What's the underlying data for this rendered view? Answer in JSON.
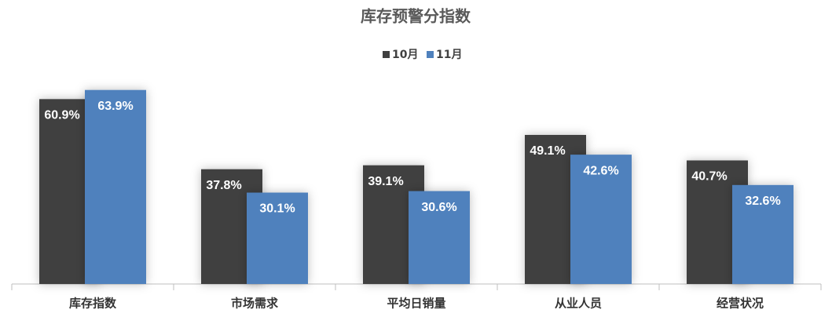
{
  "chart_data": {
    "type": "bar",
    "title": "库存预警分指数",
    "categories": [
      "库存指数",
      "市场需求",
      "平均日销量",
      "从业人员",
      "经营状况"
    ],
    "series": [
      {
        "name": "10月",
        "color": "#404040",
        "values": [
          60.9,
          37.8,
          39.1,
          49.1,
          40.7
        ],
        "value_labels": [
          "60.9%",
          "37.8%",
          "39.1%",
          "49.1%",
          "40.7%"
        ]
      },
      {
        "name": "11月",
        "color": "#4f81bd",
        "values": [
          63.9,
          30.1,
          30.6,
          42.6,
          32.6
        ],
        "value_labels": [
          "63.9%",
          "30.1%",
          "30.6%",
          "42.6%",
          "32.6%"
        ]
      }
    ],
    "legend": "top"
  }
}
